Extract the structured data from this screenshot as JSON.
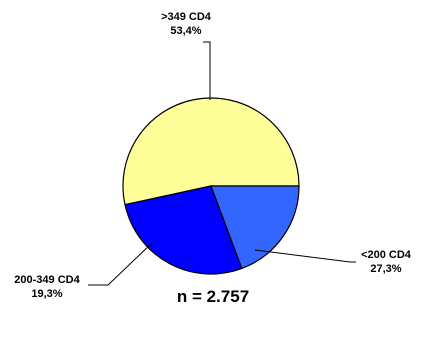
{
  "chart_data": {
    "type": "pie",
    "slices": [
      {
        "name": ">349 CD4",
        "value": 53.4,
        "label": "53,4%",
        "color": "#ffff99"
      },
      {
        "name": "<200 CD4",
        "value": 27.3,
        "label": "27,3%",
        "color": "#0000ff"
      },
      {
        "name": "200-349 CD4",
        "value": 19.3,
        "label": "19,3%",
        "color": "#3366ff"
      }
    ],
    "footnote": "n = 2.757",
    "title": "",
    "legend": "none"
  }
}
